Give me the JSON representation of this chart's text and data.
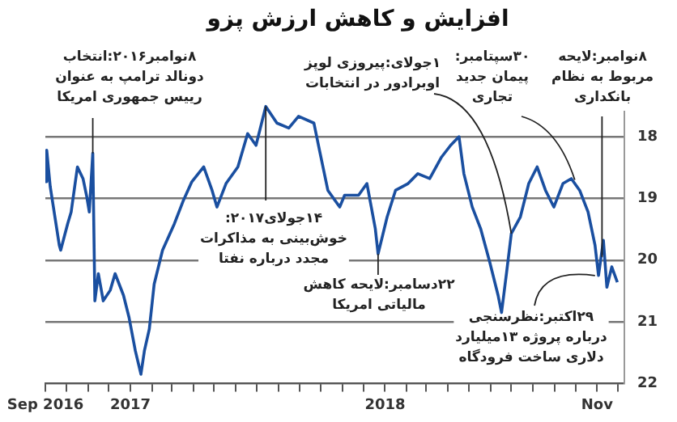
{
  "chart_data": {
    "type": "line",
    "title": "افزایش و کاهش ارزش پزو",
    "x": [
      "2016-09-01",
      "2016-09-03",
      "2016-09-08",
      "2016-09-21",
      "2016-09-23",
      "2016-10-03",
      "2016-10-08",
      "2016-10-17",
      "2016-10-25",
      "2016-10-30",
      "2016-11-03",
      "2016-11-08",
      "2016-11-11",
      "2016-11-16",
      "2016-11-23",
      "2016-12-03",
      "2016-12-10",
      "2016-12-22",
      "2016-12-30",
      "2017-01-08",
      "2017-01-16",
      "2017-01-21",
      "2017-01-28",
      "2017-02-04",
      "2017-02-16",
      "2017-03-05",
      "2017-03-18",
      "2017-03-30",
      "2017-04-16",
      "2017-04-28",
      "2017-05-05",
      "2017-05-18",
      "2017-06-04",
      "2017-06-18",
      "2017-06-30",
      "2017-07-14",
      "2017-07-30",
      "2017-08-16",
      "2017-08-30",
      "2017-09-21",
      "2017-09-29",
      "2017-10-11",
      "2017-10-28",
      "2017-11-04",
      "2017-11-24",
      "2017-12-06",
      "2017-12-18",
      "2017-12-22",
      "2018-01-04",
      "2018-01-16",
      "2018-02-03",
      "2018-02-17",
      "2018-03-06",
      "2018-03-23",
      "2018-04-05",
      "2018-04-17",
      "2018-04-24",
      "2018-05-06",
      "2018-05-18",
      "2018-05-31",
      "2018-06-12",
      "2018-06-17",
      "2018-06-24",
      "2018-07-01",
      "2018-07-14",
      "2018-07-26",
      "2018-08-07",
      "2018-08-19",
      "2018-08-31",
      "2018-09-13",
      "2018-09-25",
      "2018-10-07",
      "2018-10-19",
      "2018-10-29",
      "2018-11-03",
      "2018-11-10",
      "2018-11-15",
      "2018-11-22",
      "2018-11-30"
    ],
    "series": [
      {
        "color": "#1a4fa0",
        "values": [
          18.73,
          18.22,
          18.81,
          19.76,
          19.84,
          19.41,
          19.22,
          18.49,
          18.68,
          18.95,
          19.22,
          18.27,
          20.66,
          20.22,
          20.66,
          20.49,
          20.22,
          20.57,
          20.93,
          21.47,
          21.85,
          21.47,
          21.12,
          20.39,
          19.84,
          19.41,
          19.03,
          18.73,
          18.49,
          18.87,
          19.14,
          18.76,
          18.49,
          17.95,
          18.14,
          17.51,
          17.78,
          17.86,
          17.67,
          17.78,
          18.22,
          18.87,
          19.14,
          18.95,
          18.95,
          18.76,
          19.49,
          19.9,
          19.3,
          18.87,
          18.76,
          18.6,
          18.68,
          18.33,
          18.14,
          18.0,
          18.6,
          19.14,
          19.49,
          20.03,
          20.57,
          20.85,
          20.22,
          19.57,
          19.3,
          18.76,
          18.49,
          18.87,
          19.14,
          18.76,
          18.68,
          18.87,
          19.22,
          19.76,
          20.25,
          19.68,
          20.44,
          20.11,
          20.36
        ]
      }
    ],
    "xlim": [
      "2016-09-01",
      "2018-12-10"
    ],
    "xticks": [
      {
        "value": "2016-09-01",
        "label": "Sep 2016"
      },
      {
        "value": "2016-10-01",
        "label": null
      },
      {
        "value": "2016-11-01",
        "label": null
      },
      {
        "value": "2016-12-01",
        "label": null
      },
      {
        "value": "2017-01-01",
        "label": "2017"
      },
      {
        "value": "2017-02-01",
        "label": null
      },
      {
        "value": "2017-03-01",
        "label": null
      },
      {
        "value": "2017-04-01",
        "label": null
      },
      {
        "value": "2017-05-01",
        "label": null
      },
      {
        "value": "2017-06-01",
        "label": null
      },
      {
        "value": "2017-07-01",
        "label": null
      },
      {
        "value": "2017-08-01",
        "label": null
      },
      {
        "value": "2017-09-01",
        "label": null
      },
      {
        "value": "2017-10-01",
        "label": null
      },
      {
        "value": "2017-11-01",
        "label": null
      },
      {
        "value": "2017-12-01",
        "label": null
      },
      {
        "value": "2018-01-01",
        "label": "2018"
      },
      {
        "value": "2018-02-01",
        "label": null
      },
      {
        "value": "2018-03-01",
        "label": null
      },
      {
        "value": "2018-04-01",
        "label": null
      },
      {
        "value": "2018-05-01",
        "label": null
      },
      {
        "value": "2018-06-01",
        "label": null
      },
      {
        "value": "2018-07-01",
        "label": null
      },
      {
        "value": "2018-08-01",
        "label": null
      },
      {
        "value": "2018-09-01",
        "label": null
      },
      {
        "value": "2018-10-01",
        "label": null
      },
      {
        "value": "2018-11-01",
        "label": "Nov"
      },
      {
        "value": "2018-12-01",
        "label": null
      }
    ],
    "ylim": [
      22,
      17.3
    ],
    "yticks": [
      18,
      19,
      20,
      21,
      22
    ],
    "grid": "y",
    "legend": false,
    "marker": "none",
    "line_style": "solid",
    "annotations": [
      {
        "text": "۸نوامبر۲۰۱۶:انتخاب\nدونالد ترامپ به عنوان\nرییس جمهوری امریکا",
        "x": "2016-11-08",
        "y": 18.27
      },
      {
        "text": "۱۴جولای۲۰۱۷:\nخوش‌بینی به مذاکرات\nمجدد درباره نفتا",
        "x": "2017-07-14",
        "y": 17.51
      },
      {
        "text": "۲۲دسامبر:لایحه کاهش\nمالیاتی امریکا",
        "x": "2017-12-22",
        "y": 19.9
      },
      {
        "text": "۱جولای:پیروزی لوپز\nاوبرادور در انتخابات",
        "x": "2018-07-01",
        "y": 19.57
      },
      {
        "text": "۳۰سپتامبر:\nپیمان جدید\nتجاری",
        "x": "2018-09-30",
        "y": 18.7
      },
      {
        "text": "۸نوامبر:لایحه\nمربوط به نظام\nبانکداری",
        "x": "2018-11-08",
        "y": 19.95
      },
      {
        "text": "۲۹اکتبر:نظرسنجی\nدرباره پروژه ۱۳میلیارد\nدلاری ساخت فرودگاه",
        "x": "2018-10-29",
        "y": 20.25
      }
    ]
  }
}
